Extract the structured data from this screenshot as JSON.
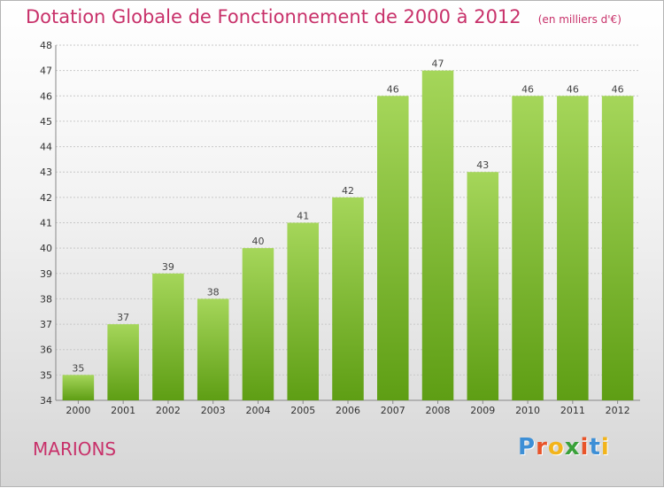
{
  "title": "Dotation Globale de Fonctionnement de 2000 à 2012",
  "unit": "(en milliers d'€)",
  "city": "MARIONS",
  "logo": {
    "letters": [
      "P",
      "r",
      "o",
      "x",
      "i",
      "t",
      "i"
    ],
    "colors": [
      "#3d8fd6",
      "#e8542a",
      "#f2b41b",
      "#3aa13a",
      "#e8542a",
      "#3d8fd6",
      "#f2b41b"
    ]
  },
  "chart_data": {
    "type": "bar",
    "categories": [
      "2000",
      "2001",
      "2002",
      "2003",
      "2004",
      "2005",
      "2006",
      "2007",
      "2008",
      "2009",
      "2010",
      "2011",
      "2012"
    ],
    "values": [
      35,
      37,
      39,
      38,
      40,
      41,
      42,
      46,
      47,
      43,
      46,
      46,
      46
    ],
    "ylim": [
      34,
      48
    ],
    "yticks": [
      34,
      35,
      36,
      37,
      38,
      39,
      40,
      41,
      42,
      43,
      44,
      45,
      46,
      47,
      48
    ],
    "grid": true,
    "bar_color": "#7bbf2b",
    "bar_color_light": "#a5d65a"
  }
}
